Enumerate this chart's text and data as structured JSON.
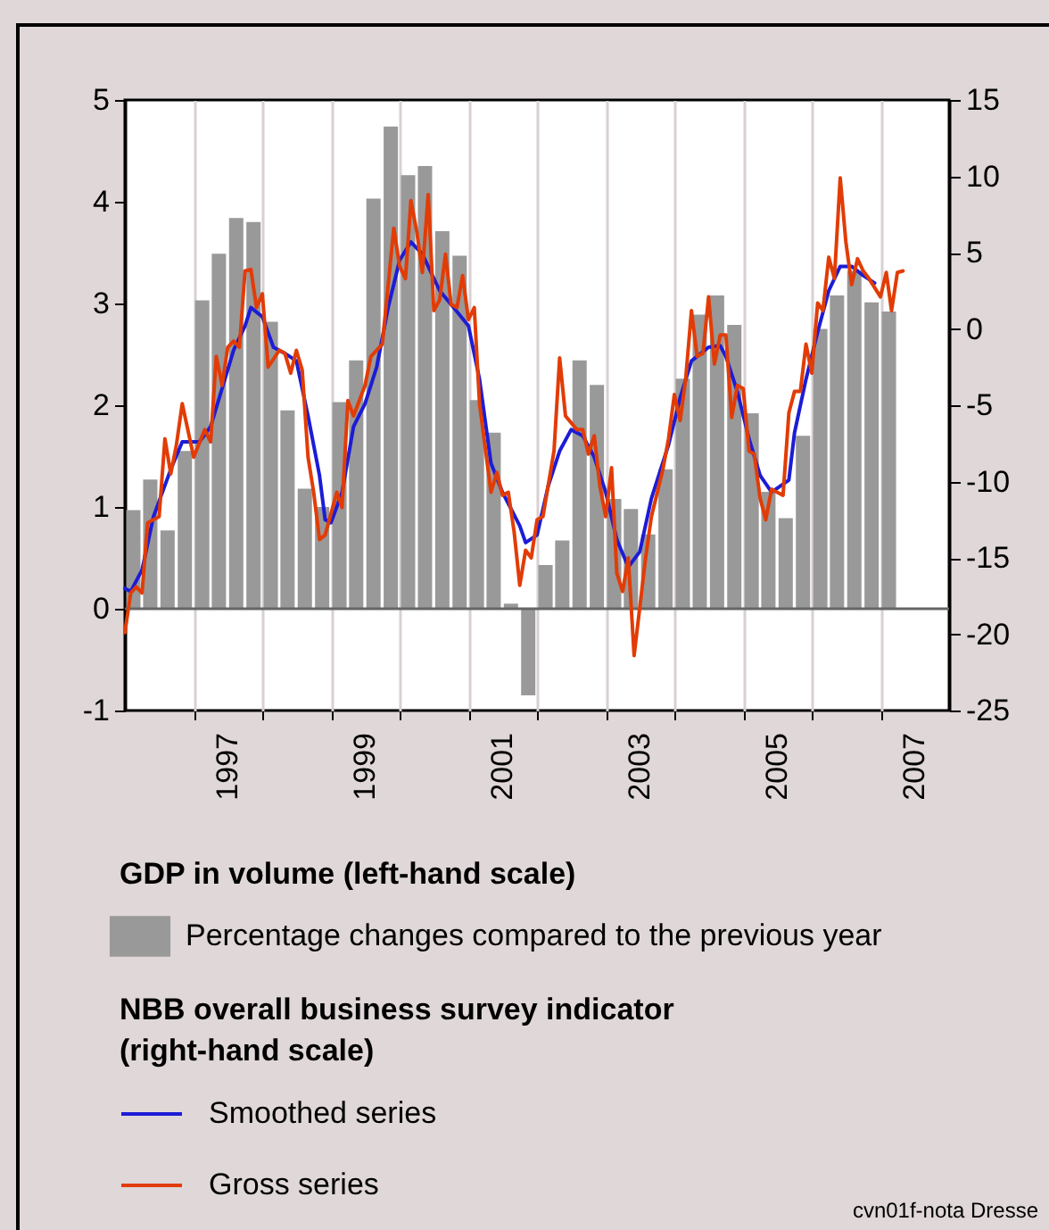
{
  "chart_data": {
    "type": "bar",
    "annotations": [
      "GDP in volume (left-hand scale)",
      "NBB overall business survey indicator\n(right-hand scale)",
      "cvn01f-nota Dresse"
    ],
    "x": [
      "1996-02-15",
      "1996-05-15",
      "1996-08-15",
      "1996-11-15",
      "1997-02-15",
      "1997-05-15",
      "1997-08-15",
      "1997-11-15",
      "1998-02-15",
      "1998-05-15",
      "1998-08-15",
      "1998-11-15",
      "1999-02-15",
      "1999-05-15",
      "1999-08-15",
      "1999-11-15",
      "2000-02-15",
      "2000-05-15",
      "2000-08-15",
      "2000-11-15",
      "2001-02-15",
      "2001-05-15",
      "2001-08-15",
      "2001-11-15",
      "2002-02-15",
      "2002-05-15",
      "2002-08-15",
      "2002-11-15",
      "2003-02-15",
      "2003-05-15",
      "2003-08-15",
      "2003-11-15",
      "2004-02-15",
      "2004-05-15",
      "2004-08-15",
      "2004-11-15",
      "2005-02-15",
      "2005-05-15",
      "2005-08-15",
      "2005-11-15",
      "2006-02-15",
      "2006-05-15",
      "2006-08-15",
      "2006-11-15",
      "2007-02-15"
    ],
    "xlim": [
      "1996-01",
      "2008-01"
    ],
    "xticks": [
      {
        "value": "1997-01",
        "label": null
      },
      {
        "value": "1997-07",
        "label": "1997"
      },
      {
        "value": "1998-01",
        "label": null
      },
      {
        "value": "1999-01",
        "label": null
      },
      {
        "value": "1999-07",
        "label": "1999"
      },
      {
        "value": "2000-01",
        "label": null
      },
      {
        "value": "2001-01",
        "label": null
      },
      {
        "value": "2001-07",
        "label": "2001"
      },
      {
        "value": "2002-01",
        "label": null
      },
      {
        "value": "2003-01",
        "label": null
      },
      {
        "value": "2003-07",
        "label": "2003"
      },
      {
        "value": "2004-01",
        "label": null
      },
      {
        "value": "2005-01",
        "label": null
      },
      {
        "value": "2005-07",
        "label": "2005"
      },
      {
        "value": "2006-01",
        "label": null
      },
      {
        "value": "2007-01",
        "label": null
      },
      {
        "value": "2007-07",
        "label": "2007"
      }
    ],
    "ylim": [
      -1,
      5
    ],
    "yticks": [
      -1,
      0,
      1,
      2,
      3,
      4,
      5
    ],
    "y2lim": [
      -25,
      15
    ],
    "y2ticks": [
      -25,
      -20,
      -15,
      -10,
      -5,
      0,
      5,
      10,
      15
    ],
    "grid": "x",
    "legend": "bottom",
    "ref_lines": [
      {
        "axis": "y",
        "value": 0,
        "color": "#666666"
      }
    ],
    "series": [
      {
        "name": "Percentage changes compared to the previous year",
        "color": "#999999",
        "values": [
          0.97,
          1.27,
          0.77,
          1.55,
          3.03,
          3.49,
          3.84,
          3.8,
          2.82,
          1.95,
          1.18,
          1.0,
          2.03,
          2.44,
          4.03,
          4.74,
          4.26,
          4.35,
          3.71,
          3.47,
          2.05,
          1.73,
          0.05,
          -0.85,
          0.43,
          0.67,
          2.44,
          2.2,
          1.08,
          0.98,
          0.73,
          1.37,
          2.26,
          2.89,
          3.08,
          2.79,
          1.92,
          1.15,
          0.89,
          1.7,
          2.75,
          3.08,
          3.32,
          3.01,
          2.92
        ]
      },
      {
        "name": "Smoothed series",
        "type": "line",
        "axis": "y2",
        "color": "#1c1cd6",
        "x": [
          "1996-01",
          "1996-02",
          "1996-04",
          "1996-06",
          "1996-09",
          "1996-11",
          "1997-02",
          "1997-04",
          "1997-06",
          "1997-08",
          "1997-10",
          "1997-11",
          "1998-01",
          "1998-03",
          "1998-05",
          "1998-07",
          "1998-09",
          "1998-11",
          "1998-12",
          "1999-01",
          "1999-03",
          "1999-05",
          "1999-07",
          "1999-09",
          "1999-11",
          "2000-01",
          "2000-03",
          "2000-05",
          "2000-08",
          "2000-10",
          "2001-01",
          "2001-03",
          "2001-05",
          "2001-07",
          "2001-10",
          "2001-11",
          "2002-01",
          "2002-03",
          "2002-05",
          "2002-07",
          "2002-09",
          "2002-11",
          "2003-01",
          "2003-03",
          "2003-05",
          "2003-07",
          "2003-09",
          "2003-12",
          "2004-02",
          "2004-04",
          "2004-07",
          "2004-09",
          "2004-10",
          "2004-12",
          "2005-02",
          "2005-04",
          "2005-06",
          "2005-09",
          "2005-10",
          "2005-12",
          "2006-02",
          "2006-04",
          "2006-06",
          "2006-08",
          "2006-10",
          "2006-12"
        ],
        "values": [
          -17.0,
          -17.2,
          -15.8,
          -12.3,
          -9.2,
          -7.4,
          -7.4,
          -6.4,
          -3.9,
          -1.4,
          0.2,
          1.4,
          0.8,
          -1.2,
          -1.6,
          -2.1,
          -5.7,
          -9.6,
          -12.5,
          -12.7,
          -10.7,
          -6.4,
          -4.9,
          -2.5,
          1.4,
          4.5,
          5.7,
          4.9,
          2.5,
          1.6,
          0.2,
          -3.3,
          -8.8,
          -10.7,
          -12.9,
          -14.0,
          -13.5,
          -10.3,
          -8.0,
          -6.6,
          -7.0,
          -8.4,
          -10.7,
          -13.8,
          -15.6,
          -14.6,
          -11.1,
          -7.6,
          -4.5,
          -2.1,
          -1.2,
          -1.1,
          -1.8,
          -4.1,
          -7.2,
          -9.6,
          -10.7,
          -9.9,
          -6.8,
          -3.3,
          -0.2,
          2.5,
          4.1,
          4.1,
          3.5,
          3.0
        ]
      },
      {
        "name": "Gross series",
        "type": "line",
        "axis": "y2",
        "color": "#e23c06",
        "x": [
          "1996-01",
          "1996-02",
          "1996-03",
          "1996-04",
          "1996-05",
          "1996-07",
          "1996-08",
          "1996-09",
          "1996-10",
          "1996-11",
          "1997-01",
          "1997-03",
          "1997-04",
          "1997-05",
          "1997-06",
          "1997-07",
          "1997-08",
          "1997-09",
          "1997-10",
          "1997-11",
          "1997-12",
          "1998-01",
          "1998-02",
          "1998-04",
          "1998-05",
          "1998-06",
          "1998-07",
          "1998-08",
          "1998-09",
          "1998-10",
          "1998-11",
          "1998-12",
          "1999-02",
          "1999-03",
          "1999-04",
          "1999-05",
          "1999-07",
          "1999-08",
          "1999-10",
          "1999-12",
          "2000-01",
          "2000-02",
          "2000-03",
          "2000-04",
          "2000-05",
          "2000-06",
          "2000-07",
          "2000-08",
          "2000-09",
          "2000-10",
          "2000-11",
          "2000-12",
          "2001-01",
          "2001-02",
          "2001-03",
          "2001-05",
          "2001-06",
          "2001-07",
          "2001-08",
          "2001-09",
          "2001-10",
          "2001-11",
          "2001-12",
          "2002-01",
          "2002-02",
          "2002-04",
          "2002-05",
          "2002-06",
          "2002-08",
          "2002-09",
          "2002-10",
          "2002-11",
          "2002-12",
          "2003-01",
          "2003-02",
          "2003-03",
          "2003-04",
          "2003-05",
          "2003-06",
          "2003-08",
          "2003-09",
          "2003-11",
          "2003-12",
          "2004-01",
          "2004-02",
          "2004-03",
          "2004-04",
          "2004-05",
          "2004-06",
          "2004-07",
          "2004-08",
          "2004-09",
          "2004-10",
          "2004-11",
          "2004-12",
          "2005-01",
          "2005-02",
          "2005-03",
          "2005-04",
          "2005-05",
          "2005-06",
          "2005-07",
          "2005-08",
          "2005-09",
          "2005-10",
          "2005-11",
          "2005-12",
          "2006-01",
          "2006-02",
          "2006-03",
          "2006-04",
          "2006-05",
          "2006-06",
          "2006-07",
          "2006-08",
          "2006-09",
          "2006-10",
          "2006-11",
          "2007-01",
          "2007-02",
          "2007-03",
          "2007-04",
          "2007-05"
        ],
        "values": [
          -19.9,
          -17.3,
          -16.9,
          -17.3,
          -12.7,
          -12.3,
          -7.2,
          -9.5,
          -7.6,
          -4.9,
          -8.4,
          -6.6,
          -7.4,
          -1.8,
          -3.7,
          -1.2,
          -0.8,
          -1.2,
          3.8,
          3.9,
          1.4,
          2.3,
          -2.5,
          -1.4,
          -1.6,
          -2.9,
          -1.4,
          -2.7,
          -8.4,
          -10.7,
          -13.8,
          -13.5,
          -10.7,
          -11.7,
          -4.7,
          -5.7,
          -3.7,
          -1.8,
          -1.0,
          6.6,
          4.1,
          3.3,
          8.4,
          6.4,
          3.7,
          8.8,
          1.2,
          1.9,
          4.9,
          1.6,
          1.4,
          3.5,
          0.6,
          1.4,
          -4.9,
          -10.7,
          -9.4,
          -10.9,
          -10.7,
          -13.3,
          -16.8,
          -14.5,
          -15.0,
          -12.5,
          -12.3,
          -8.0,
          -1.9,
          -5.7,
          -6.6,
          -6.6,
          -8.2,
          -7.0,
          -10.3,
          -12.3,
          -9.1,
          -16.0,
          -17.2,
          -15.0,
          -21.4,
          -15.0,
          -12.3,
          -9.2,
          -7.2,
          -4.3,
          -6.0,
          -3.3,
          1.2,
          -1.8,
          -1.6,
          2.1,
          -2.3,
          -0.4,
          -0.4,
          -5.8,
          -3.7,
          -3.9,
          -8.0,
          -8.2,
          -11.1,
          -12.5,
          -10.5,
          -10.7,
          -10.9,
          -5.5,
          -4.1,
          -4.1,
          -1.0,
          -2.9,
          1.7,
          1.2,
          4.7,
          3.3,
          9.9,
          5.7,
          2.9,
          4.6,
          3.8,
          3.3,
          2.1,
          3.7,
          1.2,
          3.7,
          3.8
        ]
      }
    ]
  }
}
